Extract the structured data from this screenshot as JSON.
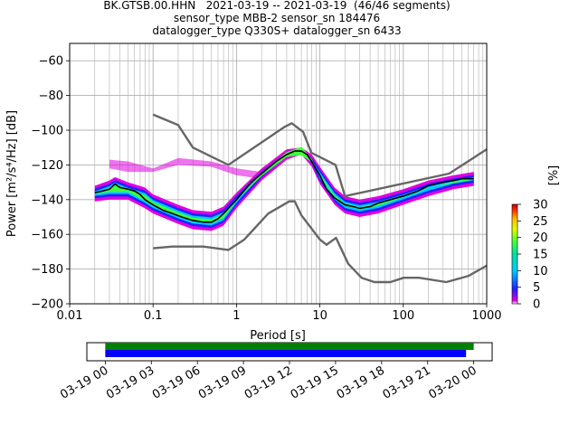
{
  "title": {
    "line1": "BK.GTSB.00.HHN   2021-03-19 -- 2021-03-19  (46/46 segments)",
    "line2": "sensor_type MBB-2 sensor_sn 184476",
    "line3": "datalogger_type Q330S+ datalogger_sn 6433"
  },
  "chart_data": [
    {
      "type": "heatmap",
      "xlabel": "Period [s]",
      "ylabel": "Power [m²/s⁴/Hz] [dB]",
      "xscale": "log",
      "xlim": [
        0.01,
        1000
      ],
      "ylim": [
        -200,
        -50
      ],
      "xticks": [
        0.01,
        0.1,
        1,
        10,
        100,
        1000
      ],
      "xtick_labels": [
        "0.01",
        "0.1",
        "1",
        "10",
        "100",
        "1000"
      ],
      "yticks": [
        -200,
        -180,
        -160,
        -140,
        -120,
        -100,
        -80,
        -60
      ],
      "grid": true,
      "colorbar": {
        "label": "[%]",
        "range": [
          0,
          30
        ],
        "ticks": [
          0,
          5,
          10,
          15,
          20,
          25,
          30
        ],
        "colormap": [
          "#ffffff",
          "#e000e0",
          "#2020ff",
          "#00c8ff",
          "#00e0a0",
          "#40ff40",
          "#e0ff00",
          "#ffc000",
          "#ff3000",
          "#c00000"
        ]
      },
      "mean_curve": {
        "color": "#000000",
        "points": [
          [
            0.02,
            -136
          ],
          [
            0.025,
            -135
          ],
          [
            0.03,
            -134
          ],
          [
            0.035,
            -131
          ],
          [
            0.04,
            -133
          ],
          [
            0.05,
            -134
          ],
          [
            0.06,
            -135
          ],
          [
            0.07,
            -137
          ],
          [
            0.08,
            -140
          ],
          [
            0.1,
            -143
          ],
          [
            0.13,
            -146
          ],
          [
            0.17,
            -148
          ],
          [
            0.22,
            -150
          ],
          [
            0.3,
            -152
          ],
          [
            0.4,
            -153
          ],
          [
            0.5,
            -153
          ],
          [
            0.6,
            -151
          ],
          [
            0.7,
            -148
          ],
          [
            0.8,
            -145
          ],
          [
            1.0,
            -140
          ],
          [
            1.5,
            -130
          ],
          [
            2.0,
            -125
          ],
          [
            3.0,
            -118
          ],
          [
            4.0,
            -114
          ],
          [
            5.0,
            -112
          ],
          [
            6.0,
            -112
          ],
          [
            7.0,
            -114
          ],
          [
            8.0,
            -118
          ],
          [
            10,
            -126
          ],
          [
            12,
            -134
          ],
          [
            15,
            -139
          ],
          [
            20,
            -143
          ],
          [
            25,
            -144
          ],
          [
            30,
            -145
          ],
          [
            40,
            -144
          ],
          [
            50,
            -142
          ],
          [
            70,
            -140
          ],
          [
            100,
            -138
          ],
          [
            150,
            -135
          ],
          [
            200,
            -132
          ],
          [
            300,
            -130
          ],
          [
            400,
            -129
          ],
          [
            500,
            -128
          ],
          [
            700,
            -128
          ]
        ]
      },
      "psd_cloud": {
        "upper": [
          [
            0.02,
            -133
          ],
          [
            0.03,
            -130
          ],
          [
            0.035,
            -128
          ],
          [
            0.05,
            -131
          ],
          [
            0.08,
            -134
          ],
          [
            0.1,
            -138
          ],
          [
            0.2,
            -144
          ],
          [
            0.3,
            -147
          ],
          [
            0.5,
            -148
          ],
          [
            0.7,
            -145
          ],
          [
            1.0,
            -137
          ],
          [
            2.0,
            -123
          ],
          [
            4.0,
            -112
          ],
          [
            6.0,
            -111
          ],
          [
            8.0,
            -115
          ],
          [
            10,
            -122
          ],
          [
            15,
            -134
          ],
          [
            20,
            -139
          ],
          [
            30,
            -141
          ],
          [
            50,
            -139
          ],
          [
            100,
            -135
          ],
          [
            200,
            -130
          ],
          [
            400,
            -127
          ],
          [
            700,
            -125
          ]
        ],
        "lower": [
          [
            0.02,
            -140
          ],
          [
            0.03,
            -139
          ],
          [
            0.05,
            -139
          ],
          [
            0.08,
            -144
          ],
          [
            0.1,
            -147
          ],
          [
            0.2,
            -153
          ],
          [
            0.3,
            -156
          ],
          [
            0.5,
            -157
          ],
          [
            0.7,
            -154
          ],
          [
            1.0,
            -144
          ],
          [
            2.0,
            -128
          ],
          [
            4.0,
            -116
          ],
          [
            6.0,
            -113
          ],
          [
            8.0,
            -120
          ],
          [
            10,
            -130
          ],
          [
            15,
            -142
          ],
          [
            20,
            -147
          ],
          [
            30,
            -149
          ],
          [
            50,
            -147
          ],
          [
            100,
            -142
          ],
          [
            200,
            -137
          ],
          [
            400,
            -133
          ],
          [
            700,
            -131
          ]
        ]
      },
      "outlier_band": {
        "upper": [
          [
            0.03,
            -117
          ],
          [
            0.05,
            -118
          ],
          [
            0.1,
            -122
          ],
          [
            0.2,
            -116
          ],
          [
            0.5,
            -118
          ],
          [
            1.0,
            -122
          ],
          [
            2.0,
            -124
          ]
        ],
        "lower": [
          [
            0.03,
            -122
          ],
          [
            0.05,
            -124
          ],
          [
            0.1,
            -124
          ],
          [
            0.2,
            -120
          ],
          [
            0.5,
            -121
          ],
          [
            1.0,
            -126
          ],
          [
            2.0,
            -128
          ]
        ]
      },
      "model_curves": [
        {
          "name": "",
          "color": "#666666",
          "points": [
            [
              0.1,
              -91
            ],
            [
              0.2,
              -97
            ],
            [
              0.3,
              -110
            ],
            [
              0.8,
              -120
            ],
            [
              3.8,
              -98
            ],
            [
              4.6,
              -96
            ],
            [
              6.3,
              -101
            ],
            [
              7.9,
              -113
            ],
            [
              15.4,
              -120
            ],
            [
              20,
              -138
            ],
            [
              354,
              -125
            ],
            [
              1000,
              -111
            ]
          ]
        },
        {
          "name": "",
          "color": "#666666",
          "points": [
            [
              0.1,
              -168
            ],
            [
              0.17,
              -167
            ],
            [
              0.4,
              -167
            ],
            [
              0.8,
              -169
            ],
            [
              1.24,
              -163
            ],
            [
              2.4,
              -148
            ],
            [
              4.3,
              -141
            ],
            [
              5,
              -141
            ],
            [
              6,
              -149
            ],
            [
              10,
              -163
            ],
            [
              12,
              -166
            ],
            [
              15.6,
              -162
            ],
            [
              21.9,
              -177
            ],
            [
              31.6,
              -185
            ],
            [
              45,
              -187.5
            ],
            [
              70,
              -187.5
            ],
            [
              101,
              -185
            ],
            [
              154,
              -185
            ],
            [
              328,
              -187.5
            ],
            [
              600,
              -184
            ],
            [
              1000,
              -178
            ]
          ]
        }
      ]
    },
    {
      "type": "timeline",
      "xtick_labels": [
        "03-19 00",
        "03-19 03",
        "03-19 06",
        "03-19 09",
        "03-19 12",
        "03-19 15",
        "03-19 18",
        "03-19 21",
        "03-20 00"
      ],
      "xlim_hours": [
        -1.2,
        25.2
      ],
      "bars": [
        {
          "name": "",
          "color": "#008000",
          "start_h": 0,
          "end_h": 24.0
        },
        {
          "name": "",
          "color": "#0000ff",
          "start_h": 0,
          "end_h": 23.5
        }
      ]
    }
  ]
}
